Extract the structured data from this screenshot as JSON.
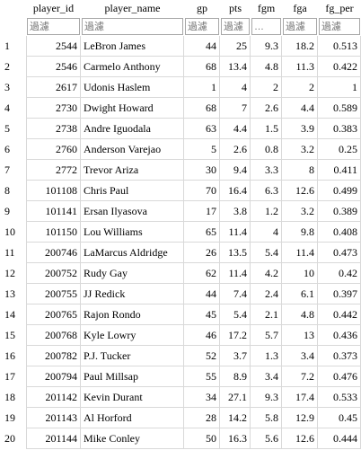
{
  "columns": [
    "",
    "player_id",
    "player_name",
    "gp",
    "pts",
    "fgm",
    "fga",
    "fg_per"
  ],
  "filter_placeholders": [
    "過濾",
    "過濾",
    "過濾",
    "過濾",
    "…",
    "過濾",
    "過濾"
  ],
  "rows": [
    [
      "1",
      "2544",
      "LeBron James",
      "44",
      "25",
      "9.3",
      "18.2",
      "0.513"
    ],
    [
      "2",
      "2546",
      "Carmelo Anthony",
      "68",
      "13.4",
      "4.8",
      "11.3",
      "0.422"
    ],
    [
      "3",
      "2617",
      "Udonis Haslem",
      "1",
      "4",
      "2",
      "2",
      "1"
    ],
    [
      "4",
      "2730",
      "Dwight Howard",
      "68",
      "7",
      "2.6",
      "4.4",
      "0.589"
    ],
    [
      "5",
      "2738",
      "Andre Iguodala",
      "63",
      "4.4",
      "1.5",
      "3.9",
      "0.383"
    ],
    [
      "6",
      "2760",
      "Anderson Varejao",
      "5",
      "2.6",
      "0.8",
      "3.2",
      "0.25"
    ],
    [
      "7",
      "2772",
      "Trevor Ariza",
      "30",
      "9.4",
      "3.3",
      "8",
      "0.411"
    ],
    [
      "8",
      "101108",
      "Chris Paul",
      "70",
      "16.4",
      "6.3",
      "12.6",
      "0.499"
    ],
    [
      "9",
      "101141",
      "Ersan Ilyasova",
      "17",
      "3.8",
      "1.2",
      "3.2",
      "0.389"
    ],
    [
      "10",
      "101150",
      "Lou Williams",
      "65",
      "11.4",
      "4",
      "9.8",
      "0.408"
    ],
    [
      "11",
      "200746",
      "LaMarcus Aldridge",
      "26",
      "13.5",
      "5.4",
      "11.4",
      "0.473"
    ],
    [
      "12",
      "200752",
      "Rudy Gay",
      "62",
      "11.4",
      "4.2",
      "10",
      "0.42"
    ],
    [
      "13",
      "200755",
      "JJ Redick",
      "44",
      "7.4",
      "2.4",
      "6.1",
      "0.397"
    ],
    [
      "14",
      "200765",
      "Rajon Rondo",
      "45",
      "5.4",
      "2.1",
      "4.8",
      "0.442"
    ],
    [
      "15",
      "200768",
      "Kyle Lowry",
      "46",
      "17.2",
      "5.7",
      "13",
      "0.436"
    ],
    [
      "16",
      "200782",
      "P.J. Tucker",
      "52",
      "3.7",
      "1.3",
      "3.4",
      "0.373"
    ],
    [
      "17",
      "200794",
      "Paul Millsap",
      "55",
      "8.9",
      "3.4",
      "7.2",
      "0.476"
    ],
    [
      "18",
      "201142",
      "Kevin Durant",
      "34",
      "27.1",
      "9.3",
      "17.4",
      "0.533"
    ],
    [
      "19",
      "201143",
      "Al Horford",
      "28",
      "14.2",
      "5.8",
      "12.9",
      "0.45"
    ],
    [
      "20",
      "201144",
      "Mike Conley",
      "50",
      "16.3",
      "5.6",
      "12.6",
      "0.444"
    ]
  ]
}
